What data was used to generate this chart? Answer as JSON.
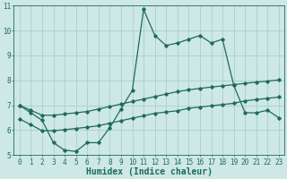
{
  "xlabel": "Humidex (Indice chaleur)",
  "ylabel": "",
  "xlim": [
    -0.5,
    23.5
  ],
  "ylim": [
    5,
    11
  ],
  "xticks": [
    0,
    1,
    2,
    3,
    4,
    5,
    6,
    7,
    8,
    9,
    10,
    11,
    12,
    13,
    14,
    15,
    16,
    17,
    18,
    19,
    20,
    21,
    22,
    23
  ],
  "yticks": [
    5,
    6,
    7,
    8,
    9,
    10,
    11
  ],
  "bg_color": "#cde8e5",
  "grid_color": "#aacfcc",
  "line_color": "#1f6b5a",
  "line1_x": [
    0,
    1,
    2,
    3,
    4,
    5,
    6,
    7,
    8,
    9,
    10,
    11,
    12,
    13,
    14,
    15,
    16,
    17,
    18,
    19,
    20,
    21,
    22,
    23
  ],
  "line1_y": [
    7.0,
    6.7,
    6.4,
    5.5,
    5.2,
    5.15,
    5.5,
    5.5,
    6.1,
    6.85,
    7.6,
    10.85,
    9.8,
    9.4,
    9.5,
    9.65,
    9.8,
    9.5,
    9.65,
    7.8,
    6.7,
    6.7,
    6.8,
    6.5
  ],
  "line2_x": [
    0,
    1,
    2,
    3,
    4,
    5,
    6,
    7,
    8,
    9,
    10,
    11,
    12,
    13,
    14,
    15,
    16,
    17,
    18,
    19,
    20,
    21,
    22,
    23
  ],
  "line2_y": [
    7.0,
    6.8,
    6.6,
    6.6,
    6.65,
    6.7,
    6.75,
    6.85,
    6.95,
    7.05,
    7.15,
    7.25,
    7.35,
    7.45,
    7.55,
    7.62,
    7.68,
    7.73,
    7.78,
    7.83,
    7.88,
    7.93,
    7.97,
    8.02
  ],
  "line3_x": [
    0,
    1,
    2,
    3,
    4,
    5,
    6,
    7,
    8,
    9,
    10,
    11,
    12,
    13,
    14,
    15,
    16,
    17,
    18,
    19,
    20,
    21,
    22,
    23
  ],
  "line3_y": [
    6.45,
    6.22,
    5.98,
    5.98,
    6.02,
    6.07,
    6.12,
    6.18,
    6.28,
    6.38,
    6.48,
    6.58,
    6.68,
    6.73,
    6.78,
    6.88,
    6.93,
    6.98,
    7.03,
    7.08,
    7.18,
    7.23,
    7.28,
    7.33
  ],
  "marker": "D",
  "markersize": 1.8,
  "linewidth": 0.9,
  "xlabel_fontsize": 7,
  "tick_fontsize": 5.5
}
